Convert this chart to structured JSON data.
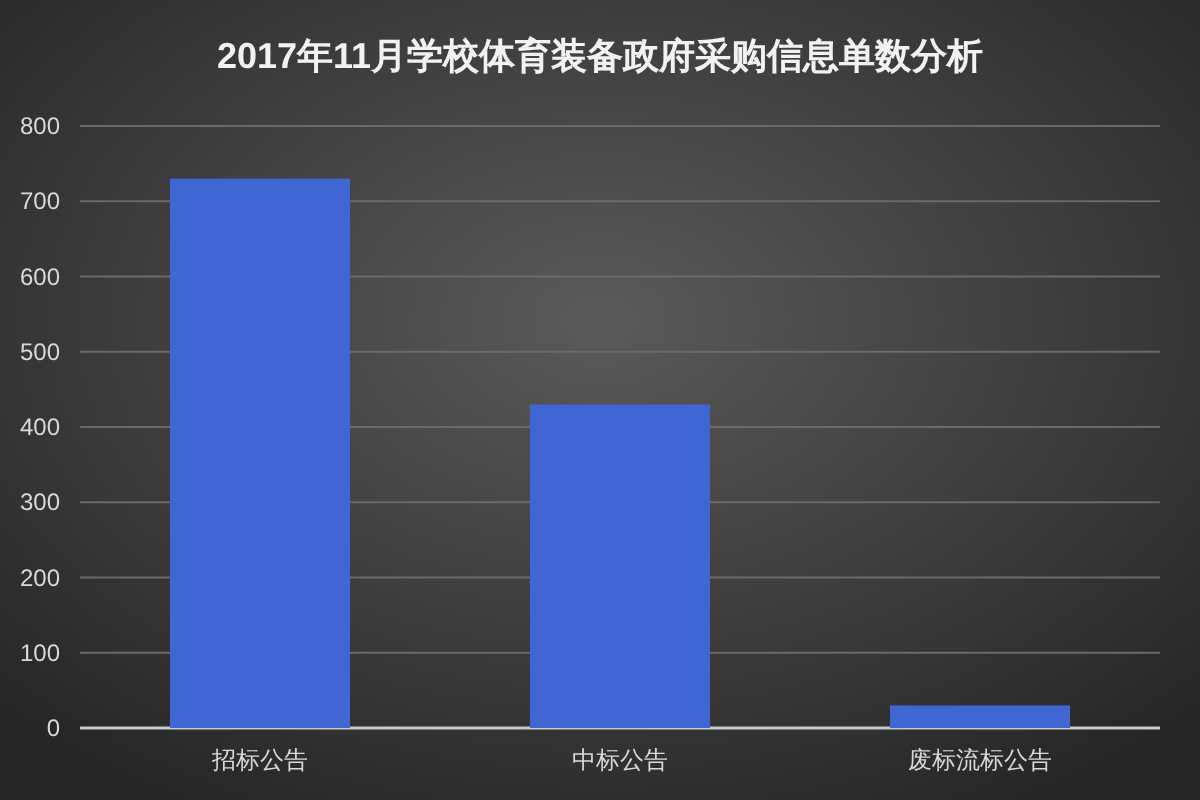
{
  "chart_data": {
    "type": "bar",
    "title": "2017年11月学校体育装备政府采购信息单数分析",
    "categories": [
      "招标公告",
      "中标公告",
      "废标流标公告"
    ],
    "values": [
      730,
      430,
      30
    ],
    "color": "#3f66d2",
    "ylim": [
      0,
      800
    ],
    "yticks": [
      0,
      100,
      200,
      300,
      400,
      500,
      600,
      700,
      800
    ],
    "grid": "y"
  }
}
